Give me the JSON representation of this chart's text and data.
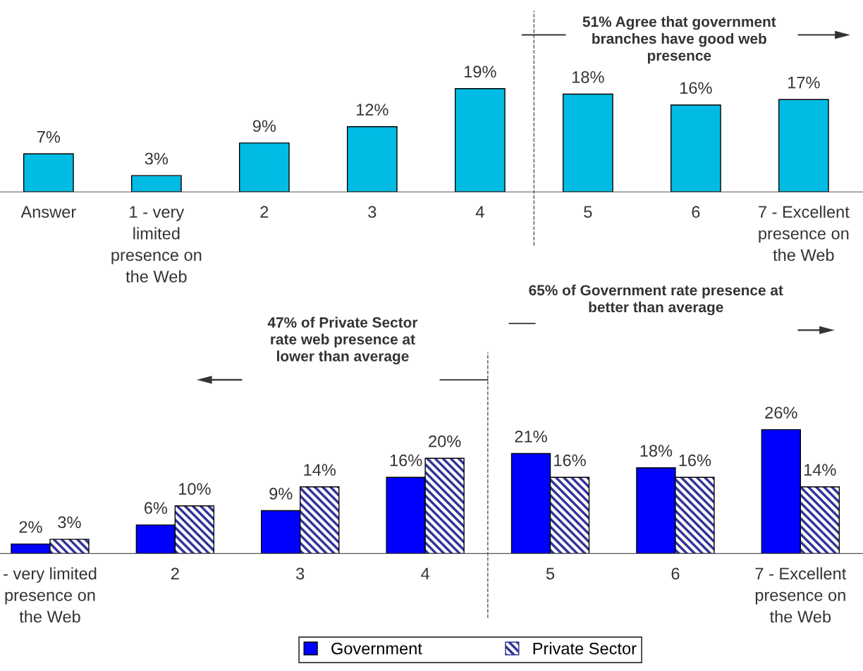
{
  "chart_data": [
    {
      "type": "bar",
      "categories": [
        "Answer",
        "1 - very limited presence on the Web",
        "2",
        "3",
        "4",
        "5",
        "6",
        "7 - Excellent presence on the Web"
      ],
      "values": [
        7,
        3,
        9,
        12,
        19,
        18,
        16,
        17
      ],
      "color": "#00bce4",
      "value_labels": [
        "7%",
        "3%",
        "9%",
        "12%",
        "19%",
        "18%",
        "16%",
        "17%"
      ],
      "tick_labels": "x",
      "grid": false,
      "legend": false,
      "annotations": [
        "51% Agree that government branches have good web presence"
      ]
    },
    {
      "type": "bar",
      "categories": [
        "- very limited presence on the Web",
        "2",
        "3",
        "4",
        "5",
        "6",
        "7 - Excellent presence on the Web"
      ],
      "series": [
        {
          "name": "Government",
          "color": "#0000ff",
          "values": [
            2,
            6,
            9,
            16,
            21,
            18,
            26
          ],
          "value_labels": [
            "2%",
            "6%",
            "9%",
            "16%",
            "21%",
            "18%",
            "26%"
          ]
        },
        {
          "name": "Private Sector",
          "color": "#333399",
          "values": [
            3,
            10,
            14,
            20,
            16,
            16,
            14
          ],
          "value_labels": [
            "3%",
            "10%",
            "14%",
            "20%",
            "16%",
            "16%",
            "14%"
          ]
        }
      ],
      "tick_labels": "x",
      "grid": false,
      "legend": "bottom",
      "annotations": [
        "47% of Private Sector rate web presence at lower than average",
        "65% of Government rate presence at better than average"
      ]
    }
  ]
}
